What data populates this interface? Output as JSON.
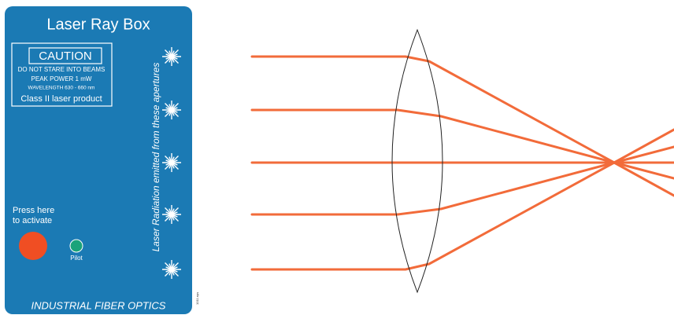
{
  "panel": {
    "title": "Laser Ray Box",
    "caution": {
      "heading": "CAUTION",
      "lines": [
        "DO NOT STARE INTO BEAMS",
        "PEAK POWER 1 mW",
        "WAVELENGTH 630 - 660 nm"
      ],
      "class": "Class II laser product"
    },
    "aperture_label": "Laser Radiation emitted from these apertures",
    "button_label": [
      "Press here",
      "to activate"
    ],
    "pilot_label": "Pilot",
    "brand": "INDUSTRIAL FIBER OPTICS",
    "file_tag": "1011.eps"
  }
}
